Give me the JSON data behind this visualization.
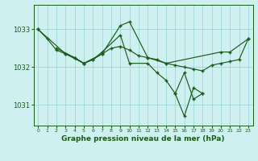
{
  "background_color": "#cff0f0",
  "plot_bg_color": "#cff0f0",
  "line_color": "#1a5c1a",
  "marker_color": "#1a5c1a",
  "grid_color": "#a0d8d8",
  "title": "Graphe pression niveau de la mer (hPa)",
  "ylabel_ticks": [
    1031,
    1032,
    1033
  ],
  "xlim": [
    -0.5,
    23.5
  ],
  "ylim": [
    1030.45,
    1033.65
  ],
  "xticks": [
    0,
    1,
    2,
    3,
    4,
    5,
    6,
    7,
    8,
    9,
    10,
    11,
    12,
    13,
    14,
    15,
    16,
    17,
    18,
    19,
    20,
    21,
    22,
    23
  ],
  "series": [
    {
      "x": [
        0,
        1,
        2,
        3,
        4,
        5,
        6,
        7,
        8,
        9,
        10,
        11,
        12,
        13,
        14,
        15,
        16,
        17,
        18,
        19,
        20,
        21,
        22,
        23
      ],
      "y": [
        1033.0,
        1032.75,
        1032.45,
        1032.35,
        1032.25,
        1032.1,
        1032.2,
        1032.35,
        1032.5,
        1032.55,
        1032.45,
        1032.3,
        1032.25,
        1032.2,
        1032.1,
        1032.05,
        1032.0,
        1031.95,
        1031.9,
        1032.05,
        1032.1,
        1032.15,
        1032.2,
        1032.75
      ]
    },
    {
      "x": [
        0,
        3,
        5,
        7,
        9,
        10,
        12,
        14,
        20,
        21,
        23
      ],
      "y": [
        1033.0,
        1032.35,
        1032.1,
        1032.35,
        1033.1,
        1033.2,
        1032.25,
        1032.1,
        1032.4,
        1032.4,
        1032.75
      ]
    },
    {
      "x": [
        2,
        4,
        5,
        6,
        7,
        9,
        10,
        12,
        13,
        14,
        15,
        16,
        17,
        18
      ],
      "y": [
        1032.5,
        1032.25,
        1032.1,
        1032.2,
        1032.4,
        1032.85,
        1032.1,
        1032.1,
        1031.85,
        1031.65,
        1031.3,
        1030.7,
        1031.45,
        1031.3
      ]
    },
    {
      "x": [
        15,
        16,
        17,
        18
      ],
      "y": [
        1031.3,
        1031.85,
        1031.15,
        1031.3
      ]
    }
  ]
}
